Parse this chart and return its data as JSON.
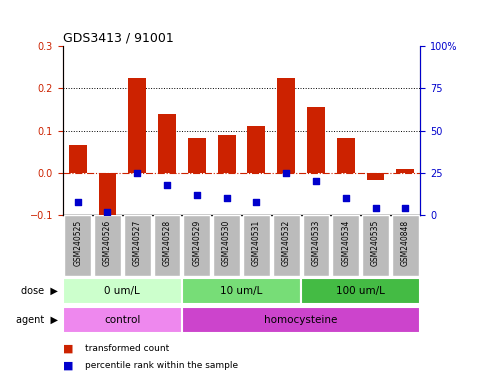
{
  "title": "GDS3413 / 91001",
  "samples": [
    "GSM240525",
    "GSM240526",
    "GSM240527",
    "GSM240528",
    "GSM240529",
    "GSM240530",
    "GSM240531",
    "GSM240532",
    "GSM240533",
    "GSM240534",
    "GSM240535",
    "GSM240848"
  ],
  "transformed_count": [
    0.065,
    -0.1,
    0.225,
    0.14,
    0.082,
    0.09,
    0.11,
    0.225,
    0.155,
    0.082,
    -0.018,
    0.01
  ],
  "percentile_rank": [
    8,
    2,
    25,
    18,
    12,
    10,
    8,
    25,
    20,
    10,
    4,
    4
  ],
  "dose_groups": [
    {
      "label": "0 um/L",
      "start": 0,
      "end": 4,
      "color": "#ccffcc"
    },
    {
      "label": "10 um/L",
      "start": 4,
      "end": 8,
      "color": "#77dd77"
    },
    {
      "label": "100 um/L",
      "start": 8,
      "end": 12,
      "color": "#44bb44"
    }
  ],
  "agent_groups": [
    {
      "label": "control",
      "start": 0,
      "end": 4,
      "color": "#ee88ee"
    },
    {
      "label": "homocysteine",
      "start": 4,
      "end": 12,
      "color": "#cc44cc"
    }
  ],
  "ylim_left": [
    -0.1,
    0.3
  ],
  "ylim_right": [
    0,
    100
  ],
  "yticks_left": [
    -0.1,
    0.0,
    0.1,
    0.2,
    0.3
  ],
  "yticks_right": [
    0,
    25,
    50,
    75,
    100
  ],
  "bar_color": "#cc2200",
  "dot_color": "#0000cc",
  "background_color": "#ffffff",
  "tick_bg_color": "#bbbbbb",
  "left_label_color": "#555555"
}
